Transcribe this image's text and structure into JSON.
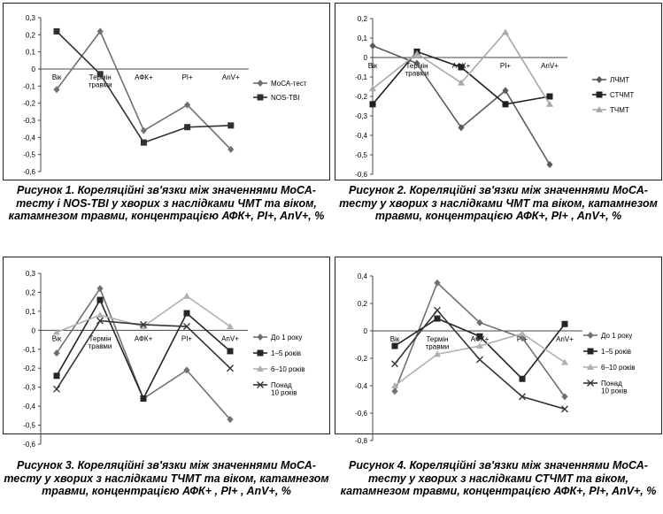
{
  "chart_data": [
    {
      "type": "line",
      "categories": [
        "Вік",
        "Термін травми",
        "АФК+",
        "PI+",
        "AnV+"
      ],
      "category_lines": [
        [
          "Вік"
        ],
        [
          "Термін",
          "травми"
        ],
        [
          "АФК+"
        ],
        [
          "PI+"
        ],
        [
          "AnV+"
        ]
      ],
      "ylim": [
        -0.6,
        0.3
      ],
      "yticks": [
        "0,3",
        "0,2",
        "0,1",
        "0",
        "-0,1",
        "-0,2",
        "-0,3",
        "-0,4",
        "-0,5",
        "-0,6"
      ],
      "series": [
        {
          "name": "МоСА-тест",
          "values": [
            -0.12,
            0.22,
            -0.36,
            -0.21,
            -0.47
          ],
          "color": "#707070",
          "marker": "diamond"
        },
        {
          "name": "NOS-TBI",
          "values": [
            0.22,
            -0.03,
            -0.43,
            -0.34,
            -0.33
          ],
          "color": "#303030",
          "marker": "square"
        }
      ],
      "legend": "right",
      "caption": "Рисунок 1. Кореляційні зв'язки між значеннями МоСА-тесту і NOS-TBI у хворих з наслідками ЧМТ та віком, катамнезом травми, концентрацією АФК+, PI+, AnV+, %"
    },
    {
      "type": "line",
      "categories": [
        "Вік",
        "Термін травми",
        "АФК+",
        "PI+",
        "AnV+"
      ],
      "category_lines": [
        [
          "Вік"
        ],
        [
          "Термін",
          "травми"
        ],
        [
          "АФК+"
        ],
        [
          "PI+"
        ],
        [
          "AnV+"
        ]
      ],
      "ylim": [
        -0.6,
        0.2
      ],
      "yticks": [
        "0,2",
        "0,1",
        "0",
        "-0,1",
        "-0,2",
        "-0,3",
        "-0,4",
        "-0,5",
        "-0,6"
      ],
      "series": [
        {
          "name": "ЛЧМТ",
          "values": [
            0.06,
            -0.03,
            -0.36,
            -0.17,
            -0.55
          ],
          "color": "#5a5a5a",
          "marker": "diamond"
        },
        {
          "name": "СТЧМТ",
          "values": [
            -0.24,
            0.03,
            -0.05,
            -0.24,
            -0.2
          ],
          "color": "#202020",
          "marker": "square"
        },
        {
          "name": "ТЧМТ",
          "values": [
            -0.16,
            0.02,
            -0.13,
            0.13,
            -0.24
          ],
          "color": "#a8a8a8",
          "marker": "triangle"
        }
      ],
      "legend": "right",
      "caption": "Рисунок 2. Кореляційні зв'язки між значеннями МоСА-тесту у хворих з наслідками ЧМТ та віком, катамнезом травми, концентрацією АФК+, PI+ , AnV+, %"
    },
    {
      "type": "line",
      "categories": [
        "Вік",
        "Термін травми",
        "АФК+",
        "PI+",
        "AnV+"
      ],
      "category_lines": [
        [
          "Вік"
        ],
        [
          "Термін",
          "травми"
        ],
        [
          "АФК+"
        ],
        [
          "PI+"
        ],
        [
          "AnV+"
        ]
      ],
      "ylim": [
        -0.6,
        0.3
      ],
      "yticks": [
        "0,3",
        "0,2",
        "0,1",
        "0",
        "-0,1",
        "-0,2",
        "-0,3",
        "-0,4",
        "-0,5",
        "-0,6"
      ],
      "series": [
        {
          "name": "До 1 року",
          "values": [
            -0.12,
            0.22,
            -0.36,
            -0.21,
            -0.47
          ],
          "color": "#707070",
          "marker": "diamond"
        },
        {
          "name": "1–5 років",
          "values": [
            -0.24,
            0.16,
            -0.36,
            0.09,
            -0.11
          ],
          "color": "#252525",
          "marker": "square"
        },
        {
          "name": "6–10 років",
          "values": [
            -0.01,
            0.08,
            0.02,
            0.18,
            0.02
          ],
          "color": "#b0b0b0",
          "marker": "triangle"
        },
        {
          "name": "Понад 10 років",
          "values": [
            -0.31,
            0.05,
            0.03,
            0.02,
            -0.2
          ],
          "color": "#353535",
          "marker": "x"
        }
      ],
      "legend": "right",
      "caption": "Рисунок 3. Кореляційні зв'язки між значеннями МоСА-тесту у хворих з наслідками ТЧМТ та віком, катамнезом травми, концентрацією АФК+ , PI+ , AnV+, %"
    },
    {
      "type": "line",
      "categories": [
        "Вік",
        "Термін травми",
        "АФК+",
        "PI+",
        "AnV+"
      ],
      "category_lines": [
        [
          "Вік"
        ],
        [
          "Термін",
          "травми"
        ],
        [
          "АФК+"
        ],
        [
          "PI+"
        ],
        [
          "AnV+"
        ]
      ],
      "ylim": [
        -0.8,
        0.4
      ],
      "yticks": [
        "0,4",
        "0,2",
        "0",
        "-0,2",
        "-0,4",
        "-0,6",
        "-0,8"
      ],
      "series": [
        {
          "name": "До 1 року",
          "values": [
            -0.44,
            0.35,
            0.06,
            -0.05,
            -0.48
          ],
          "color": "#707070",
          "marker": "diamond"
        },
        {
          "name": "1–5 років",
          "values": [
            -0.11,
            0.09,
            -0.04,
            -0.35,
            0.05
          ],
          "color": "#252525",
          "marker": "square"
        },
        {
          "name": "6–10 років",
          "values": [
            -0.4,
            -0.17,
            -0.11,
            -0.02,
            -0.23
          ],
          "color": "#b0b0b0",
          "marker": "triangle"
        },
        {
          "name": "Понад 10 років",
          "values": [
            -0.24,
            0.15,
            -0.21,
            -0.48,
            -0.57
          ],
          "color": "#353535",
          "marker": "x"
        }
      ],
      "legend": "right",
      "caption": "Рисунок 4. Кореляційні зв'язки між значеннями МоСА-тесту у хворих з наслідками СТЧМТ та віком, катамнезом травми, концентрацією АФК+, PI+, AnV+, %"
    }
  ]
}
